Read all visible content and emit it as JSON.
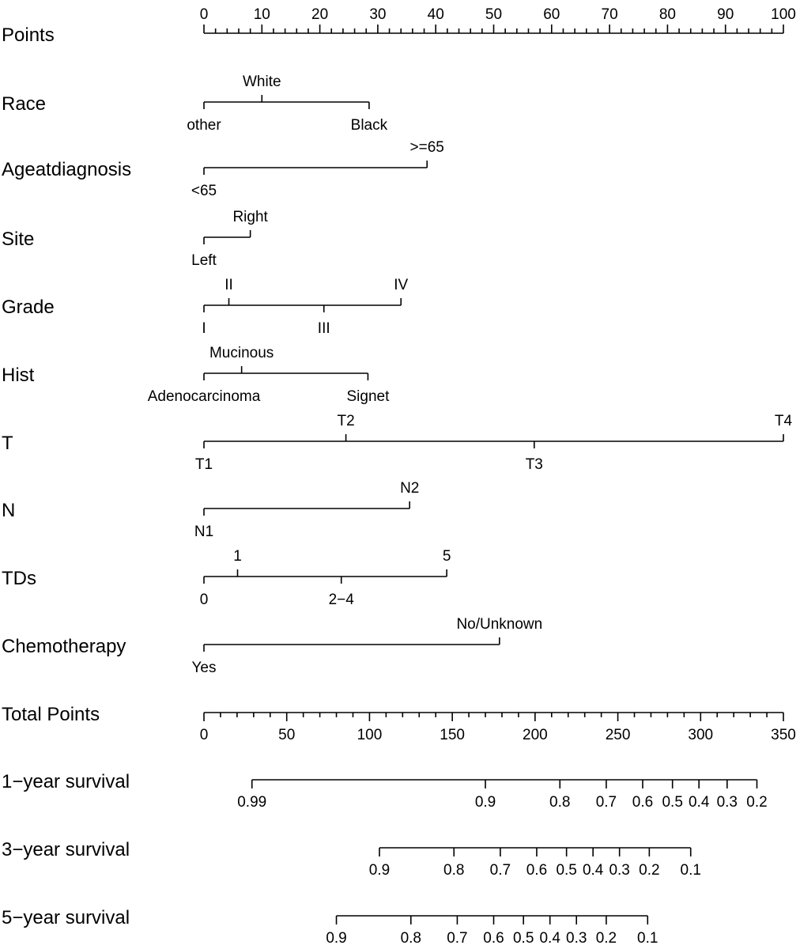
{
  "chart_data": {
    "type": "nomogram",
    "points_scale": {
      "label": "Points",
      "min": 0,
      "max": 100,
      "tick_labels": [
        "0",
        "10",
        "20",
        "30",
        "40",
        "50",
        "60",
        "70",
        "80",
        "90",
        "100"
      ]
    },
    "variables": [
      {
        "label": "Race",
        "levels": [
          {
            "name": "other",
            "points": 0,
            "side": "below"
          },
          {
            "name": "White",
            "points": 10,
            "side": "above"
          },
          {
            "name": "Black",
            "points": 28.5,
            "side": "below"
          }
        ]
      },
      {
        "label": "Ageatdiagnosis",
        "levels": [
          {
            "name": "<65",
            "points": 0,
            "side": "below"
          },
          {
            "name": ">=65",
            "points": 38.5,
            "side": "above"
          }
        ]
      },
      {
        "label": "Site",
        "levels": [
          {
            "name": "Left",
            "points": 0,
            "side": "below"
          },
          {
            "name": "Right",
            "points": 8,
            "side": "above"
          }
        ]
      },
      {
        "label": "Grade",
        "levels": [
          {
            "name": "I",
            "points": 0,
            "side": "below"
          },
          {
            "name": "II",
            "points": 4.3,
            "side": "above"
          },
          {
            "name": "III",
            "points": 20.7,
            "side": "below"
          },
          {
            "name": "IV",
            "points": 34,
            "side": "above"
          }
        ]
      },
      {
        "label": "Hist",
        "levels": [
          {
            "name": "Adenocarcinoma",
            "points": 0,
            "side": "below"
          },
          {
            "name": "Mucinous",
            "points": 6.5,
            "side": "above"
          },
          {
            "name": "Signet",
            "points": 28.3,
            "side": "below"
          }
        ]
      },
      {
        "label": "T",
        "levels": [
          {
            "name": "T1",
            "points": 0,
            "side": "below"
          },
          {
            "name": "T2",
            "points": 24.5,
            "side": "above"
          },
          {
            "name": "T3",
            "points": 57,
            "side": "below"
          },
          {
            "name": "T4",
            "points": 100,
            "side": "above"
          }
        ]
      },
      {
        "label": "N",
        "levels": [
          {
            "name": "N1",
            "points": 0,
            "side": "below"
          },
          {
            "name": "N2",
            "points": 35.5,
            "side": "above"
          }
        ]
      },
      {
        "label": "TDs",
        "levels": [
          {
            "name": "0",
            "points": 0,
            "side": "below"
          },
          {
            "name": "1",
            "points": 5.8,
            "side": "above"
          },
          {
            "name": "2−4",
            "points": 23.7,
            "side": "below"
          },
          {
            "name": "5",
            "points": 41.9,
            "side": "above"
          }
        ]
      },
      {
        "label": "Chemotherapy",
        "levels": [
          {
            "name": "Yes",
            "points": 0,
            "side": "below"
          },
          {
            "name": "No/Unknown",
            "points": 51,
            "side": "above"
          }
        ]
      }
    ],
    "total_points_scale": {
      "label": "Total Points",
      "min": 0,
      "max": 350,
      "tick_labels": [
        "0",
        "50",
        "100",
        "150",
        "200",
        "250",
        "300",
        "350"
      ]
    },
    "survival_scales": [
      {
        "label": "1−year survival",
        "ticks": [
          {
            "label": "0.99",
            "total_points": 29
          },
          {
            "label": "0.9",
            "total_points": 170
          },
          {
            "label": "0.8",
            "total_points": 215
          },
          {
            "label": "0.7",
            "total_points": 243
          },
          {
            "label": "0.6",
            "total_points": 265
          },
          {
            "label": "0.5",
            "total_points": 283
          },
          {
            "label": "0.4",
            "total_points": 299
          },
          {
            "label": "0.3",
            "total_points": 316
          },
          {
            "label": "0.2",
            "total_points": 334
          }
        ]
      },
      {
        "label": "3−year survival",
        "ticks": [
          {
            "label": "0.9",
            "total_points": 106
          },
          {
            "label": "0.8",
            "total_points": 151
          },
          {
            "label": "0.7",
            "total_points": 179
          },
          {
            "label": "0.6",
            "total_points": 201
          },
          {
            "label": "0.5",
            "total_points": 219
          },
          {
            "label": "0.4",
            "total_points": 235
          },
          {
            "label": "0.3",
            "total_points": 251
          },
          {
            "label": "0.2",
            "total_points": 269
          },
          {
            "label": "0.1",
            "total_points": 294
          }
        ]
      },
      {
        "label": "5−year survival",
        "ticks": [
          {
            "label": "0.9",
            "total_points": 80
          },
          {
            "label": "0.8",
            "total_points": 125
          },
          {
            "label": "0.7",
            "total_points": 153
          },
          {
            "label": "0.6",
            "total_points": 175
          },
          {
            "label": "0.5",
            "total_points": 193
          },
          {
            "label": "0.4",
            "total_points": 209
          },
          {
            "label": "0.3",
            "total_points": 225
          },
          {
            "label": "0.2",
            "total_points": 243
          },
          {
            "label": "0.1",
            "total_points": 268
          }
        ]
      }
    ]
  }
}
